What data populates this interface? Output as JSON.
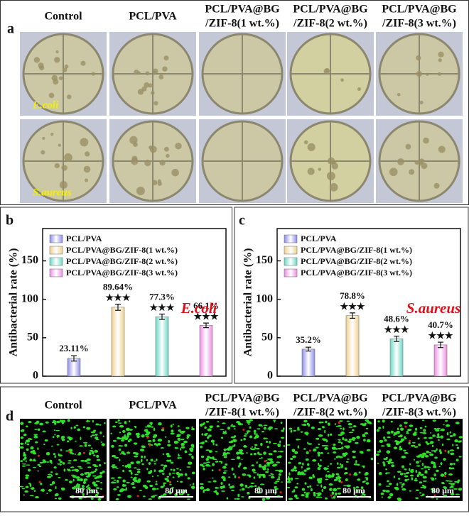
{
  "panel_a": {
    "label": "a",
    "columns": [
      [
        "Control"
      ],
      [
        "PCL/PVA"
      ],
      [
        "PCL/PVA@BG",
        "/ZIF-8(1 wt.%)"
      ],
      [
        "PCL/PVA@BG",
        "/ZIF-8(2 wt.%)"
      ],
      [
        "PCL/PVA@BG",
        "/ZIF-8(3 wt.%)"
      ]
    ],
    "row_labels": [
      "E.coli",
      "S.aureus"
    ]
  },
  "chart_data": [
    {
      "type": "bar",
      "panel_label": "b",
      "ylabel": "Antibacterial rate (%)",
      "annotation": "E.coli",
      "categories": [
        "PCL/PVA",
        "PCL/PVA@BG/ZIF-8(1 wt.%)",
        "PCL/PVA@BG/ZIF-8(2 wt.%)",
        "PCL/PVA@BG/ZIF-8(3 wt.%)"
      ],
      "colors": [
        "#8c8ce8",
        "#f0d08c",
        "#6cd8c4",
        "#ea8ee2"
      ],
      "values": [
        23.11,
        89.64,
        77.3,
        66.1
      ],
      "value_labels": [
        "23.11%",
        "89.64%",
        "77.3%",
        "66.1%"
      ],
      "errors": [
        3.5,
        4,
        3.5,
        3
      ],
      "significance": [
        null,
        "★★★",
        "★★★",
        "★★★"
      ],
      "ylim": [
        0,
        192
      ],
      "yticks": [
        0,
        50,
        100,
        150
      ]
    },
    {
      "type": "bar",
      "panel_label": "c",
      "ylabel": "Antibacterial rate (%)",
      "annotation": "S.aureus",
      "categories": [
        "PCL/PVA",
        "PCL/PVA@BG/ZIF-8(1 wt.%)",
        "PCL/PVA@BG/ZIF-8(2 wt.%)",
        "PCL/PVA@BG/ZIF-8(3 wt.%)"
      ],
      "colors": [
        "#8c8ce8",
        "#f0d08c",
        "#6cd8c4",
        "#ea8ee2"
      ],
      "values": [
        35.2,
        78.8,
        48.6,
        40.7
      ],
      "value_labels": [
        "35.2%",
        "78.8%",
        "48.6%",
        "40.7%"
      ],
      "errors": [
        2.5,
        3.5,
        3.5,
        3.5
      ],
      "significance": [
        null,
        "★★★",
        "★★★",
        "★★★"
      ],
      "ylim": [
        0,
        192
      ],
      "yticks": [
        0,
        50,
        100,
        150
      ]
    }
  ],
  "panel_d": {
    "label": "d",
    "columns": [
      [
        "Control"
      ],
      [
        "PCL/PVA"
      ],
      [
        "PCL/PVA@BG",
        "/ZIF-8(1 wt.%)"
      ],
      [
        "PCL/PVA@BG",
        "/ZIF-8(2 wt.%)"
      ],
      [
        "PCL/PVA@BG",
        "/ZIF-8(3 wt.%)"
      ]
    ],
    "scale_bar": "80 μm"
  }
}
